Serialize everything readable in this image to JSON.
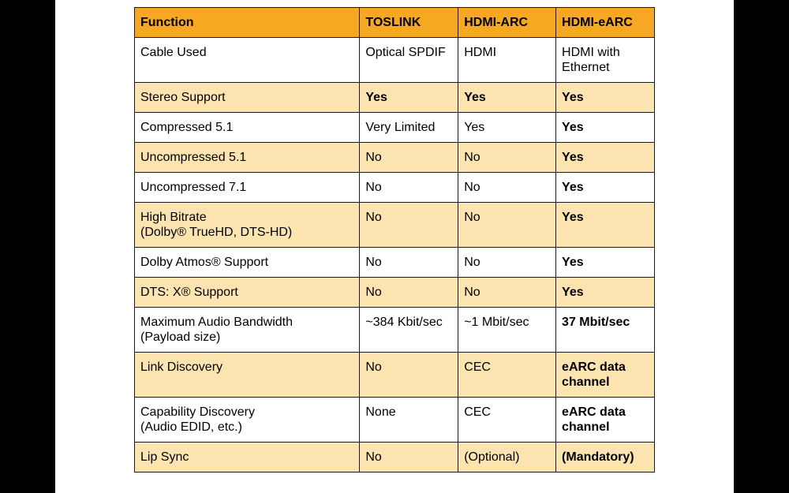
{
  "header": [
    "Function",
    "TOSLINK",
    "HDMI-ARC",
    "HDMI-eARC"
  ],
  "rows": [
    {
      "function": [
        "Cable Used"
      ],
      "toslink": [
        "Optical SPDIF"
      ],
      "arc": [
        "HDMI"
      ],
      "earc": [
        "HDMI with",
        "Ethernet"
      ],
      "bold": [
        false,
        false,
        false
      ]
    },
    {
      "function": [
        "Stereo Support"
      ],
      "toslink": [
        "Yes"
      ],
      "arc": [
        "Yes"
      ],
      "earc": [
        "Yes"
      ],
      "bold": [
        true,
        true,
        true
      ]
    },
    {
      "function": [
        "Compressed 5.1"
      ],
      "toslink": [
        "Very Limited"
      ],
      "arc": [
        "Yes"
      ],
      "earc": [
        "Yes"
      ],
      "bold": [
        false,
        false,
        true
      ]
    },
    {
      "function": [
        "Uncompressed 5.1"
      ],
      "toslink": [
        "No"
      ],
      "arc": [
        "No"
      ],
      "earc": [
        "Yes"
      ],
      "bold": [
        false,
        false,
        true
      ]
    },
    {
      "function": [
        "Uncompressed 7.1"
      ],
      "toslink": [
        "No"
      ],
      "arc": [
        "No"
      ],
      "earc": [
        "Yes"
      ],
      "bold": [
        false,
        false,
        true
      ]
    },
    {
      "function": [
        "High Bitrate",
        "(Dolby® TrueHD, DTS-HD)"
      ],
      "toslink": [
        "No"
      ],
      "arc": [
        "No"
      ],
      "earc": [
        "Yes"
      ],
      "bold": [
        false,
        false,
        true
      ]
    },
    {
      "function": [
        "Dolby Atmos® Support"
      ],
      "toslink": [
        "No"
      ],
      "arc": [
        "No"
      ],
      "earc": [
        "Yes"
      ],
      "bold": [
        false,
        false,
        true
      ]
    },
    {
      "function": [
        "DTS: X® Support"
      ],
      "toslink": [
        "No"
      ],
      "arc": [
        "No"
      ],
      "earc": [
        "Yes"
      ],
      "bold": [
        false,
        false,
        true
      ]
    },
    {
      "function": [
        "Maximum Audio Bandwidth",
        "(Payload size)"
      ],
      "toslink": [
        "~384 Kbit/sec"
      ],
      "arc": [
        "~1 Mbit/sec"
      ],
      "earc": [
        "37 Mbit/sec"
      ],
      "bold": [
        false,
        false,
        true
      ]
    },
    {
      "function": [
        "Link Discovery"
      ],
      "toslink": [
        "No"
      ],
      "arc": [
        "CEC"
      ],
      "earc": [
        "eARC data",
        "channel"
      ],
      "bold": [
        false,
        false,
        true
      ]
    },
    {
      "function": [
        "Capability Discovery",
        "(Audio EDID, etc.)"
      ],
      "toslink": [
        "None"
      ],
      "arc": [
        "CEC"
      ],
      "earc": [
        "eARC data",
        "channel"
      ],
      "bold": [
        false,
        false,
        true
      ]
    },
    {
      "function": [
        "Lip Sync"
      ],
      "toslink": [
        "No"
      ],
      "arc": [
        "(Optional)"
      ],
      "earc": [
        "(Mandatory)"
      ],
      "bold": [
        false,
        false,
        true
      ]
    }
  ],
  "colors": {
    "header_bg": "#f7a823",
    "alt_row_bg": "#fce4b1",
    "row_bg": "#ffffff",
    "border": "#1a1a1a",
    "backdrop": "#000000"
  }
}
